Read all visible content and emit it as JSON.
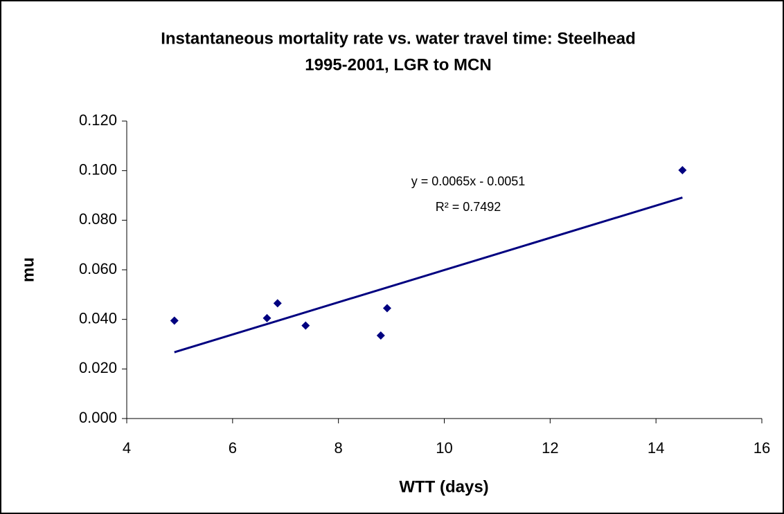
{
  "chart_data": {
    "type": "scatter",
    "title": "Instantaneous mortality rate vs. water travel time: Steelhead",
    "subtitle": "1995-2001, LGR to MCN",
    "x_label": "WTT (days)",
    "y_label": "mu",
    "x": [
      4.9,
      6.65,
      6.85,
      7.38,
      8.8,
      8.92,
      14.5
    ],
    "values": [
      0.0395,
      0.0405,
      0.0465,
      0.0375,
      0.0335,
      0.0445,
      0.1002
    ],
    "color": "#000080",
    "trendline": {
      "slope": 0.0065,
      "intercept": -0.0051,
      "equation": "y = 0.0065x - 0.0051",
      "r2_label": "R² = 0.7492"
    },
    "xlim": [
      4,
      16
    ],
    "xticks": [
      4,
      6,
      8,
      10,
      12,
      14,
      16
    ],
    "ylim": [
      0,
      0.12
    ],
    "yticks": [
      {
        "value": 0,
        "label": "0.000"
      },
      {
        "value": 0.02,
        "label": "0.020"
      },
      {
        "value": 0.04,
        "label": "0.040"
      },
      {
        "value": 0.06,
        "label": "0.060"
      },
      {
        "value": 0.08,
        "label": "0.080"
      },
      {
        "value": 0.1,
        "label": "0.100"
      },
      {
        "value": 0.12,
        "label": "0.120"
      }
    ],
    "grid": false
  }
}
